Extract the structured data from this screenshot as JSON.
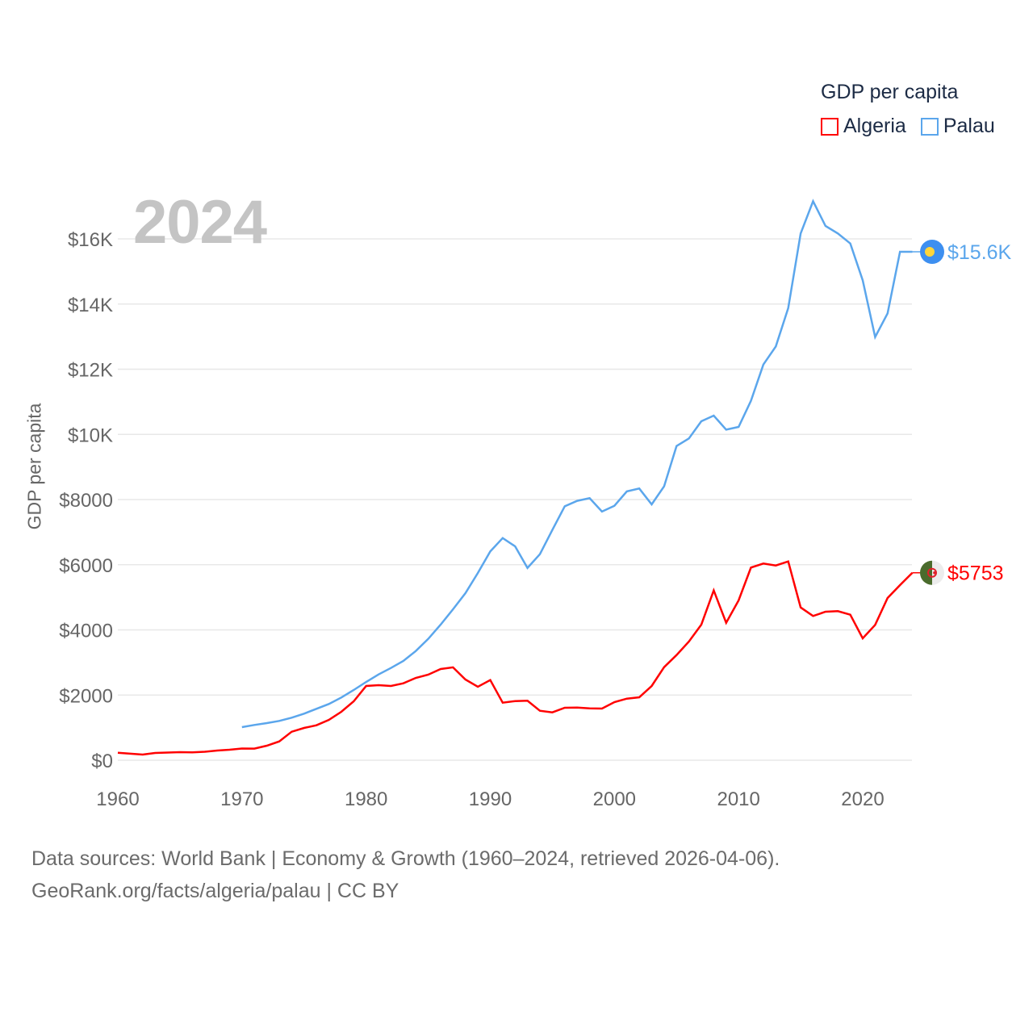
{
  "chart_data": {
    "type": "line",
    "title": "GDP per capita",
    "xlabel": "",
    "ylabel": "GDP per capita",
    "current_year_label": "2024",
    "xlim": [
      1960,
      2024
    ],
    "ylim": [
      0,
      17500
    ],
    "x_ticks": [
      1960,
      1970,
      1980,
      1990,
      2000,
      2010,
      2020
    ],
    "x_tick_labels": [
      "1960",
      "1970",
      "1980",
      "1990",
      "2000",
      "2010",
      "2020"
    ],
    "y_ticks": [
      0,
      2000,
      4000,
      6000,
      8000,
      10000,
      12000,
      14000,
      16000
    ],
    "y_tick_labels": [
      "$0",
      "$2000",
      "$4000",
      "$6000",
      "$8000",
      "$10K",
      "$12K",
      "$14K",
      "$16K"
    ],
    "grid": true,
    "legend_placement": "top-right",
    "series": [
      {
        "name": "Algeria",
        "color": "#ff0000",
        "end_label": "$5753",
        "flag_icon": "algeria-flag",
        "x_start": 1960,
        "values": [
          230,
          200,
          173,
          223,
          235,
          248,
          240,
          260,
          297,
          322,
          360,
          357,
          446,
          577,
          875,
          990,
          1072,
          1238,
          1486,
          1808,
          2279,
          2303,
          2279,
          2360,
          2526,
          2625,
          2800,
          2850,
          2477,
          2254,
          2460,
          1766,
          1816,
          1825,
          1518,
          1469,
          1610,
          1618,
          1593,
          1585,
          1783,
          1890,
          1932,
          2279,
          2856,
          3228,
          3641,
          4161,
          5210,
          4218,
          4904,
          5912,
          6036,
          5977,
          6101,
          4689,
          4425,
          4557,
          4574,
          4466,
          3740,
          4154,
          4979,
          5375,
          5753
        ]
      },
      {
        "name": "Palau",
        "color": "#5ba6ec",
        "end_label": "$15.6K",
        "flag_icon": "palau-flag",
        "x_start": 1970,
        "values": [
          1015,
          1082,
          1139,
          1206,
          1305,
          1429,
          1578,
          1726,
          1924,
          2155,
          2403,
          2633,
          2831,
          3047,
          3351,
          3723,
          4161,
          4632,
          5127,
          5746,
          6407,
          6819,
          6564,
          5903,
          6324,
          7067,
          7795,
          7960,
          8043,
          7630,
          7810,
          8249,
          8340,
          7852,
          8405,
          9643,
          9875,
          10403,
          10576,
          10146,
          10228,
          11028,
          12143,
          12698,
          13878,
          16165,
          17157,
          16396,
          16165,
          15859,
          14730,
          12987,
          13715,
          15604,
          15604
        ]
      }
    ]
  },
  "legend": {
    "title": "GDP per capita",
    "items": [
      {
        "label": "Algeria",
        "color": "#ff0000"
      },
      {
        "label": "Palau",
        "color": "#5ba6ec"
      }
    ]
  },
  "footer": {
    "line1": "Data sources: World Bank | Economy & Growth (1960–2024, retrieved 2026-04-06).",
    "line2": "GeoRank.org/facts/algeria/palau | CC BY"
  }
}
